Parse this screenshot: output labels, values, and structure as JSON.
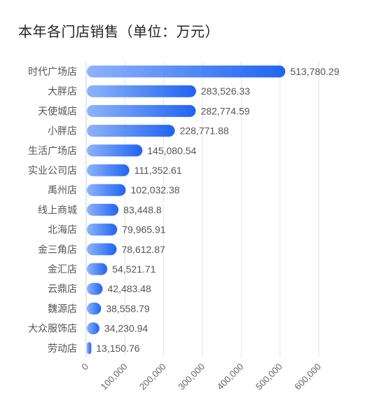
{
  "title": "本年各门店销售（单位：万元）",
  "chart_data": {
    "type": "bar",
    "orientation": "horizontal",
    "title": "本年各门店销售（单位：万元）",
    "categories": [
      "时代广场店",
      "大胖店",
      "天使城店",
      "小胖店",
      "生活广场店",
      "实业公司店",
      "禹州店",
      "线上商城",
      "北海店",
      "金三角店",
      "金汇店",
      "云鼎店",
      "魏源店",
      "大众服饰店",
      "劳动店"
    ],
    "values": [
      513780.29,
      283526.33,
      282774.59,
      228771.88,
      145080.54,
      111352.61,
      102032.38,
      83448.8,
      79965.91,
      78612.87,
      54521.71,
      42483.48,
      38558.79,
      34230.94,
      13150.76
    ],
    "value_labels": [
      "513,780.29",
      "283,526.33",
      "282,774.59",
      "228,771.88",
      "145,080.54",
      "111,352.61",
      "102,032.38",
      "83,448.8",
      "79,965.91",
      "78,612.87",
      "54,521.71",
      "42,483.48",
      "38,558.79",
      "34,230.94",
      "13,150.76"
    ],
    "x_ticks": [
      "0",
      "100,000",
      "200,000",
      "300,000",
      "400,000",
      "500,000",
      "600,000"
    ],
    "xlim": [
      0,
      600000
    ],
    "grid": true,
    "bar_color_start": "#8db3fb",
    "bar_color_end": "#1f64f2"
  }
}
